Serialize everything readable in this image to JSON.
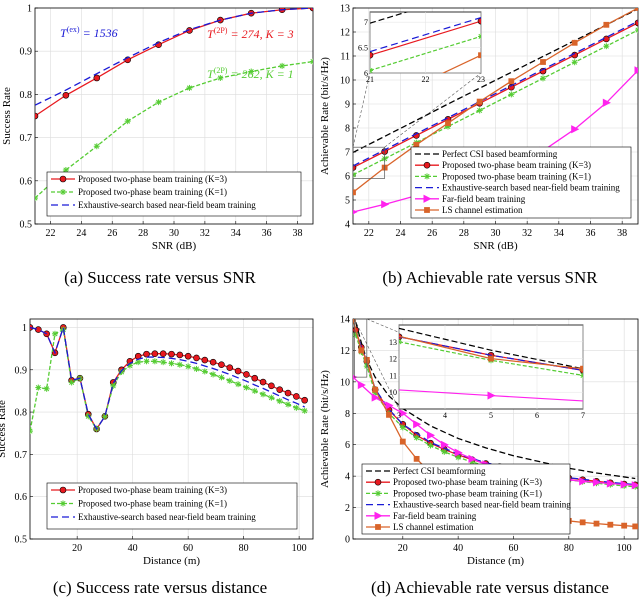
{
  "captions": {
    "a": "(a)  Success rate versus SNR",
    "b": "(b)  Achievable rate versus SNR",
    "c": "(c)  Success rate versus distance",
    "d": "(d)  Achievable rate versus distance"
  },
  "colors": {
    "red": "#e8191f",
    "green": "#55cc33",
    "blue": "#1a1ad6",
    "black": "#000000",
    "magenta": "#ff22ee",
    "orange": "#d9642a"
  },
  "chart_data": [
    {
      "id": "a",
      "type": "line",
      "title": "",
      "xlabel": "SNR (dB)",
      "ylabel": "Success Rate",
      "xlim": [
        21,
        39
      ],
      "ylim": [
        0.5,
        1
      ],
      "xticks": [
        "22",
        "24",
        "26",
        "28",
        "30",
        "32",
        "34",
        "36",
        "38"
      ],
      "yticks": [
        "0.5",
        "0.6",
        "0.7",
        "0.8",
        "0.9",
        "1"
      ],
      "grid": true,
      "annotations": [
        {
          "text": "T(ex) = 1536",
          "color": "#1a1ad6",
          "main": "T",
          "sup": "(ex)",
          "rest": " = 1536"
        },
        {
          "text": "T(2P) = 274, K = 3",
          "color": "#e8191f",
          "main": "T",
          "sup": "(2P)",
          "rest": " = 274, K = 3"
        },
        {
          "text": "T(2P) = 262, K = 1",
          "color": "#55cc33",
          "main": "T",
          "sup": "(2P)",
          "rest": " = 262, K = 1"
        }
      ],
      "legend": {
        "position": "bottom-left",
        "entries": [
          "Proposed two-phase beam training (K=3)",
          "Proposed two-phase beam training (K=1)",
          "Exhaustive-search based near-field beam training"
        ]
      },
      "series": [
        {
          "name": "Proposed two-phase beam training (K=3)",
          "color": "#e8191f",
          "marker": "circle",
          "dash": "",
          "x": [
            21,
            23,
            25,
            27,
            29,
            31,
            33,
            35,
            37,
            39
          ],
          "y": [
            0.75,
            0.798,
            0.838,
            0.88,
            0.915,
            0.948,
            0.972,
            0.988,
            0.996,
            1.0
          ]
        },
        {
          "name": "Proposed two-phase beam training (K=1)",
          "color": "#55cc33",
          "marker": "star",
          "dash": "4,2",
          "x": [
            21,
            23,
            25,
            27,
            29,
            31,
            33,
            35,
            37,
            39
          ],
          "y": [
            0.56,
            0.625,
            0.68,
            0.738,
            0.782,
            0.815,
            0.838,
            0.853,
            0.866,
            0.876
          ]
        },
        {
          "name": "Exhaustive-search based near-field beam training",
          "color": "#1a1ad6",
          "marker": "none",
          "dash": "7,4",
          "x": [
            21,
            23,
            25,
            27,
            29,
            31,
            33,
            35,
            37,
            39
          ],
          "y": [
            0.775,
            0.81,
            0.848,
            0.885,
            0.92,
            0.95,
            0.972,
            0.988,
            0.996,
            1.0
          ]
        }
      ]
    },
    {
      "id": "b",
      "type": "line",
      "title": "",
      "xlabel": "SNR (dB)",
      "ylabel": "Achievable Rate (bit/s/Hz)",
      "xlim": [
        21,
        39
      ],
      "ylim": [
        4,
        13
      ],
      "xticks": [
        "22",
        "24",
        "26",
        "28",
        "30",
        "32",
        "34",
        "36",
        "38"
      ],
      "yticks": [
        "4",
        "5",
        "6",
        "7",
        "8",
        "9",
        "10",
        "11",
        "12",
        "13"
      ],
      "grid": true,
      "legend": {
        "position": "bottom-right",
        "entries": [
          "Perfect CSI based beamforming",
          "Proposed two-phase beam training (K=3)",
          "Proposed two-phase beam training (K=1)",
          "Exhaustive-search based near-field beam training",
          "Far-field beam training",
          "LS channel estimation"
        ]
      },
      "inset": {
        "xlim": [
          21,
          23
        ],
        "ylim": [
          6,
          7.2
        ],
        "xticks": [
          "21",
          "22",
          "23"
        ],
        "yticks": [
          "6",
          "6.5",
          "7"
        ]
      },
      "series": [
        {
          "name": "Perfect CSI based beamforming",
          "color": "#000000",
          "marker": "none",
          "dash": "6,3",
          "x": [
            21,
            23,
            25,
            27,
            29,
            31,
            33,
            35,
            37,
            39
          ],
          "y": [
            6.98,
            7.65,
            8.32,
            9.0,
            9.66,
            10.32,
            10.98,
            11.64,
            12.3,
            12.96
          ]
        },
        {
          "name": "Proposed two-phase beam training (K=3)",
          "color": "#e8191f",
          "marker": "circle",
          "dash": "",
          "x": [
            21,
            23,
            25,
            27,
            29,
            31,
            33,
            35,
            37,
            39
          ],
          "y": [
            6.35,
            7.02,
            7.69,
            8.36,
            9.03,
            9.7,
            10.37,
            11.04,
            11.71,
            12.38
          ]
        },
        {
          "name": "Proposed two-phase beam training (K=1)",
          "color": "#55cc33",
          "marker": "star",
          "dash": "4,2",
          "x": [
            21,
            23,
            25,
            27,
            29,
            31,
            33,
            35,
            37,
            39
          ],
          "y": [
            6.05,
            6.72,
            7.39,
            8.06,
            8.73,
            9.4,
            10.07,
            10.74,
            11.41,
            12.08
          ]
        },
        {
          "name": "Exhaustive-search based near-field beam training",
          "color": "#1a1ad6",
          "marker": "none",
          "dash": "7,4",
          "x": [
            21,
            23,
            25,
            27,
            29,
            31,
            33,
            35,
            37,
            39
          ],
          "y": [
            6.42,
            7.09,
            7.76,
            8.43,
            9.1,
            9.77,
            10.44,
            11.11,
            11.78,
            12.45
          ]
        },
        {
          "name": "Far-field beam training",
          "color": "#ff22ee",
          "marker": "triangle",
          "dash": "",
          "x": [
            21,
            23,
            25,
            27,
            29,
            31,
            33,
            35,
            37,
            39
          ],
          "y": [
            4.5,
            4.82,
            5.18,
            5.58,
            6.0,
            6.5,
            7.05,
            7.95,
            9.05,
            10.4
          ]
        },
        {
          "name": "LS channel estimation",
          "color": "#d9642a",
          "marker": "square",
          "dash": "",
          "x": [
            21,
            23,
            25,
            27,
            29,
            31,
            33,
            35,
            37,
            39
          ],
          "y": [
            5.32,
            6.35,
            7.3,
            8.2,
            9.1,
            9.95,
            10.75,
            11.55,
            12.3,
            13.0
          ]
        }
      ]
    },
    {
      "id": "c",
      "type": "line",
      "title": "",
      "xlabel": "Distance (m)",
      "ylabel": "Success Rate",
      "xlim": [
        3,
        105
      ],
      "ylim": [
        0.5,
        1.02
      ],
      "xticks": [
        "20",
        "40",
        "60",
        "80",
        "100"
      ],
      "yticks": [
        "0.5",
        "0.6",
        "0.7",
        "0.8",
        "0.9",
        "1"
      ],
      "grid": true,
      "legend": {
        "position": "bottom-center",
        "entries": [
          "Proposed two-phase beam training (K=3)",
          "Proposed two-phase beam training (K=1)",
          "Exhaustive-search based near-field beam training"
        ]
      },
      "series": [
        {
          "name": "Proposed two-phase beam training (K=3)",
          "color": "#e8191f",
          "marker": "circle",
          "dash": "",
          "x": [
            3,
            6,
            9,
            12,
            15,
            18,
            21,
            24,
            27,
            30,
            33,
            36,
            39,
            42,
            45,
            48,
            51,
            54,
            57,
            60,
            63,
            66,
            69,
            72,
            75,
            78,
            81,
            84,
            87,
            90,
            93,
            96,
            99,
            102
          ],
          "y": [
            1.0,
            0.995,
            0.985,
            0.94,
            1.0,
            0.875,
            0.88,
            0.795,
            0.76,
            0.79,
            0.87,
            0.9,
            0.92,
            0.932,
            0.937,
            0.938,
            0.938,
            0.937,
            0.935,
            0.932,
            0.928,
            0.923,
            0.918,
            0.912,
            0.905,
            0.897,
            0.889,
            0.88,
            0.871,
            0.862,
            0.853,
            0.845,
            0.837,
            0.828
          ]
        },
        {
          "name": "Proposed two-phase beam training (K=1)",
          "color": "#55cc33",
          "marker": "star",
          "dash": "4,2",
          "x": [
            3,
            6,
            9,
            12,
            15,
            18,
            21,
            24,
            27,
            30,
            33,
            36,
            39,
            42,
            45,
            48,
            51,
            54,
            57,
            60,
            63,
            66,
            69,
            72,
            75,
            78,
            81,
            84,
            87,
            90,
            93,
            96,
            99,
            102
          ],
          "y": [
            0.755,
            0.858,
            0.855,
            0.985,
            0.995,
            0.87,
            0.88,
            0.79,
            0.76,
            0.79,
            0.862,
            0.895,
            0.91,
            0.918,
            0.92,
            0.92,
            0.918,
            0.915,
            0.912,
            0.908,
            0.902,
            0.896,
            0.889,
            0.882,
            0.874,
            0.866,
            0.858,
            0.85,
            0.842,
            0.834,
            0.826,
            0.818,
            0.81,
            0.803
          ]
        },
        {
          "name": "Exhaustive-search based near-field beam training",
          "color": "#1a1ad6",
          "marker": "none",
          "dash": "7,4",
          "x": [
            3,
            6,
            9,
            12,
            15,
            18,
            21,
            24,
            27,
            30,
            33,
            36,
            39,
            42,
            45,
            48,
            51,
            54,
            57,
            60,
            63,
            66,
            69,
            72,
            75,
            78,
            81,
            84,
            87,
            90,
            93,
            96,
            99,
            102
          ],
          "y": [
            1.0,
            0.995,
            0.985,
            0.94,
            1.0,
            0.875,
            0.88,
            0.795,
            0.76,
            0.79,
            0.868,
            0.898,
            0.915,
            0.925,
            0.93,
            0.93,
            0.929,
            0.927,
            0.924,
            0.92,
            0.915,
            0.909,
            0.903,
            0.896,
            0.889,
            0.881,
            0.873,
            0.864,
            0.856,
            0.847,
            0.838,
            0.829,
            0.821,
            0.812
          ]
        }
      ]
    },
    {
      "id": "d",
      "type": "line",
      "title": "",
      "xlabel": "Distance (m)",
      "ylabel": "Achievable Rate (bit/s/Hz)",
      "xlim": [
        2,
        105
      ],
      "ylim": [
        0,
        14
      ],
      "xticks": [
        "20",
        "40",
        "60",
        "80",
        "100"
      ],
      "yticks": [
        "0",
        "2",
        "4",
        "6",
        "8",
        "10",
        "12",
        "14"
      ],
      "grid": true,
      "legend": {
        "position": "bottom-left",
        "entries": [
          "Perfect CSI beamforming",
          "Proposed two-phase beam training (K=3)",
          "Proposed two-phase beam training (K=1)",
          "Exhaustive-search based near-field beam training",
          "Far-field beam training",
          "LS channel estimation"
        ]
      },
      "inset": {
        "xlim": [
          3,
          7
        ],
        "ylim": [
          9,
          14
        ],
        "xticks": [
          "3",
          "4",
          "5",
          "6",
          "7"
        ],
        "yticks": [
          "10",
          "11",
          "12",
          "13"
        ]
      },
      "series": [
        {
          "name": "Perfect CSI beamforming",
          "color": "#000000",
          "marker": "none",
          "dash": "6,3",
          "x": [
            3,
            5,
            7,
            10,
            15,
            20,
            30,
            40,
            50,
            60,
            70,
            80,
            90,
            100,
            104
          ],
          "y": [
            13.8,
            12.5,
            11.4,
            10.3,
            9.1,
            8.3,
            7.2,
            6.4,
            5.8,
            5.3,
            4.9,
            4.5,
            4.2,
            3.95,
            3.85
          ]
        },
        {
          "name": "Proposed two-phase beam training (K=3)",
          "color": "#e8191f",
          "marker": "circle",
          "dash": "",
          "x": [
            3,
            5,
            7,
            10,
            15,
            20,
            25,
            30,
            35,
            40,
            45,
            50,
            55,
            60,
            65,
            70,
            75,
            80,
            85,
            90,
            95,
            100,
            104
          ],
          "y": [
            13.3,
            12.2,
            11.3,
            9.5,
            8.2,
            7.3,
            6.6,
            6.1,
            5.7,
            5.35,
            5.05,
            4.8,
            4.6,
            4.42,
            4.27,
            4.13,
            4.0,
            3.88,
            3.77,
            3.67,
            3.58,
            3.5,
            3.45
          ]
        },
        {
          "name": "Proposed two-phase beam training (K=1)",
          "color": "#55cc33",
          "marker": "star",
          "dash": "4,2",
          "x": [
            3,
            5,
            7,
            10,
            15,
            20,
            25,
            30,
            35,
            40,
            45,
            50,
            55,
            60,
            65,
            70,
            75,
            80,
            85,
            90,
            95,
            100,
            104
          ],
          "y": [
            13.0,
            11.9,
            11.0,
            9.3,
            8.0,
            7.1,
            6.45,
            5.95,
            5.55,
            5.2,
            4.9,
            4.66,
            4.46,
            4.29,
            4.14,
            4.0,
            3.88,
            3.76,
            3.65,
            3.55,
            3.46,
            3.38,
            3.33
          ]
        },
        {
          "name": "Exhaustive-search based near-field beam training",
          "color": "#1a1ad6",
          "marker": "none",
          "dash": "7,4",
          "x": [
            3,
            5,
            7,
            10,
            15,
            20,
            30,
            40,
            50,
            60,
            70,
            80,
            90,
            100,
            104
          ],
          "y": [
            13.3,
            12.2,
            11.3,
            9.55,
            8.25,
            7.3,
            6.15,
            5.4,
            4.85,
            4.45,
            4.15,
            3.9,
            3.7,
            3.52,
            3.46
          ]
        },
        {
          "name": "Far-field beam training",
          "color": "#ff22ee",
          "marker": "triangle",
          "dash": "",
          "x": [
            2,
            5,
            10,
            15,
            20,
            25,
            30,
            35,
            40,
            45,
            50,
            55,
            60,
            65,
            70,
            75,
            80,
            85,
            90,
            95,
            100,
            104
          ],
          "y": [
            10.3,
            9.8,
            9.0,
            8.5,
            8.0,
            7.3,
            6.6,
            6.0,
            5.5,
            5.1,
            4.75,
            4.5,
            4.3,
            4.12,
            3.98,
            3.86,
            3.76,
            3.67,
            3.6,
            3.53,
            3.47,
            3.42
          ]
        },
        {
          "name": "LS channel estimation",
          "color": "#d9642a",
          "marker": "square",
          "dash": "",
          "x": [
            2,
            5,
            7,
            10,
            15,
            20,
            25,
            30,
            35,
            40,
            45,
            50,
            55,
            60,
            65,
            70,
            75,
            80,
            85,
            90,
            95,
            100,
            104
          ],
          "y": [
            14.0,
            12.0,
            11.4,
            9.5,
            7.9,
            6.2,
            5.1,
            4.2,
            3.5,
            2.95,
            2.5,
            2.15,
            1.9,
            1.7,
            1.52,
            1.38,
            1.26,
            1.15,
            1.06,
            0.98,
            0.91,
            0.85,
            0.8
          ]
        }
      ]
    }
  ]
}
